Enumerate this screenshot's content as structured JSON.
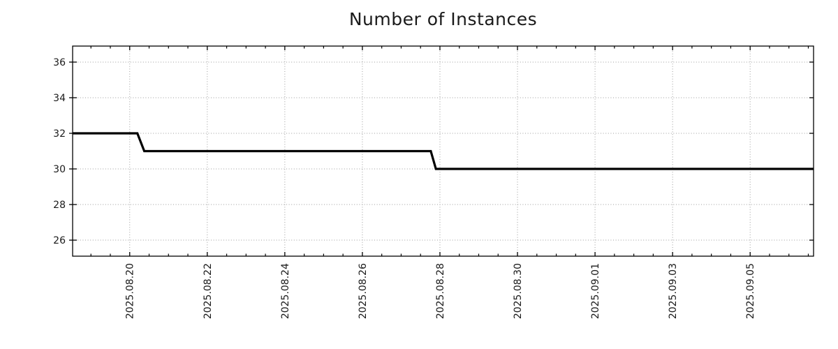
{
  "chart_data": {
    "type": "line",
    "title": "Number of Instances",
    "xlabel": "",
    "ylabel": "",
    "x_type": "time",
    "x_domain": [
      "2025-08-18T12:40:00",
      "2025-09-06T15:15:00"
    ],
    "y_domain": [
      25.1,
      36.9
    ],
    "x_ticks": [
      {
        "value": "2025-08-20T00:00:00",
        "label": "2025.08.20"
      },
      {
        "value": "2025-08-22T00:00:00",
        "label": "2025.08.22"
      },
      {
        "value": "2025-08-24T00:00:00",
        "label": "2025.08.24"
      },
      {
        "value": "2025-08-26T00:00:00",
        "label": "2025.08.26"
      },
      {
        "value": "2025-08-28T00:00:00",
        "label": "2025.08.28"
      },
      {
        "value": "2025-08-30T00:00:00",
        "label": "2025.08.30"
      },
      {
        "value": "2025-09-01T00:00:00",
        "label": "2025.09.01"
      },
      {
        "value": "2025-09-03T00:00:00",
        "label": "2025.09.03"
      },
      {
        "value": "2025-09-05T00:00:00",
        "label": "2025.09.05"
      }
    ],
    "x_minor_every_hours": 12,
    "y_ticks": [
      26,
      28,
      30,
      32,
      34,
      36
    ],
    "grid": "dotted",
    "legend": "none",
    "series": [
      {
        "name": "instances",
        "color": "#000000",
        "line_width": 3.2,
        "points": [
          [
            "2025-08-18T12:40:00",
            32
          ],
          [
            "2025-08-20T04:45:00",
            32
          ],
          [
            "2025-08-20T09:00:00",
            31
          ],
          [
            "2025-08-27T18:20:00",
            31
          ],
          [
            "2025-08-27T21:30:00",
            30
          ],
          [
            "2025-09-06T15:15:00",
            30
          ]
        ]
      }
    ]
  },
  "styles": {
    "background": "#ffffff",
    "grid_color": "#9c9c9c",
    "border_color": "#000000",
    "tick_color": "#000000",
    "text_color": "#1a1a1a"
  }
}
